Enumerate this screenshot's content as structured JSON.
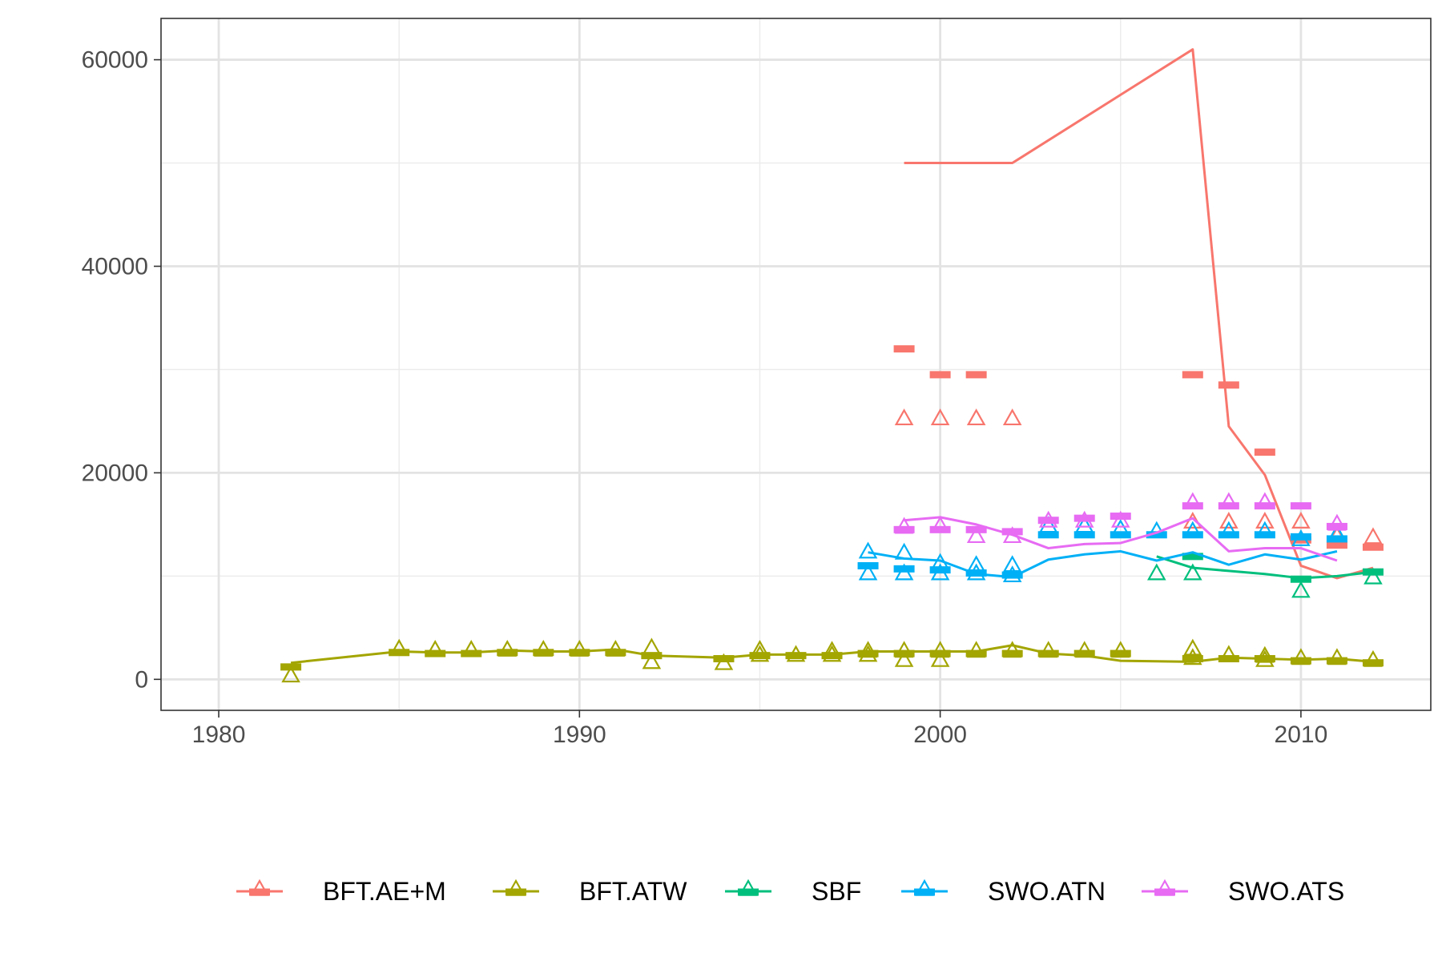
{
  "chart_data": {
    "type": "line",
    "title": "",
    "xlabel": "",
    "ylabel": "",
    "xlim": [
      1978.4,
      2013.6
    ],
    "ylim": [
      -3000,
      64000
    ],
    "x_ticks": [
      1980,
      1990,
      2000,
      2010
    ],
    "y_ticks": [
      0,
      20000,
      40000,
      60000
    ],
    "x_minor": [
      1985,
      1995,
      2005
    ],
    "y_minor": [
      10000,
      30000,
      50000
    ],
    "grid": true,
    "legend_position": "bottom",
    "series": [
      {
        "name": "BFT.AE+M",
        "color": "#F8766D",
        "line": [
          [
            1999,
            50000
          ],
          [
            2000,
            50000
          ],
          [
            2002,
            50000
          ],
          [
            2007,
            61000
          ],
          [
            2008,
            24500
          ],
          [
            2009,
            19800
          ],
          [
            2010,
            11000
          ],
          [
            2011,
            9800
          ],
          [
            2012,
            10800
          ]
        ],
        "triangles": [
          [
            1999,
            25200
          ],
          [
            2000,
            25200
          ],
          [
            2001,
            25200
          ],
          [
            2002,
            25200
          ],
          [
            2007,
            15200
          ],
          [
            2008,
            15200
          ],
          [
            2009,
            15200
          ],
          [
            2010,
            15200
          ],
          [
            2011,
            13800
          ],
          [
            2012,
            13700
          ]
        ],
        "bars": [
          [
            1999,
            32000
          ],
          [
            2000,
            29500
          ],
          [
            2001,
            29500
          ],
          [
            2007,
            29500
          ],
          [
            2008,
            28500
          ],
          [
            2009,
            22000
          ],
          [
            2010,
            13500
          ],
          [
            2011,
            13000
          ],
          [
            2012,
            12800
          ]
        ]
      },
      {
        "name": "BFT.ATW",
        "color": "#A3A500",
        "line": [
          [
            1982,
            1600
          ],
          [
            1985,
            2700
          ],
          [
            1986,
            2600
          ],
          [
            1987,
            2600
          ],
          [
            1988,
            2800
          ],
          [
            1989,
            2700
          ],
          [
            1990,
            2700
          ],
          [
            1991,
            2900
          ],
          [
            1992,
            2300
          ],
          [
            1994,
            2100
          ],
          [
            1995,
            2400
          ],
          [
            1996,
            2400
          ],
          [
            1997,
            2400
          ],
          [
            1998,
            2700
          ],
          [
            1999,
            2700
          ],
          [
            2000,
            2700
          ],
          [
            2001,
            2700
          ],
          [
            2002,
            3300
          ],
          [
            2003,
            2500
          ],
          [
            2004,
            2300
          ],
          [
            2005,
            1800
          ],
          [
            2007,
            1700
          ],
          [
            2008,
            2100
          ],
          [
            2009,
            2000
          ],
          [
            2010,
            1900
          ],
          [
            2011,
            2000
          ],
          [
            2012,
            1700
          ]
        ],
        "triangles": [
          [
            1982,
            300
          ],
          [
            1985,
            2900
          ],
          [
            1986,
            2800
          ],
          [
            1987,
            2800
          ],
          [
            1988,
            2800
          ],
          [
            1989,
            2800
          ],
          [
            1990,
            2800
          ],
          [
            1991,
            2800
          ],
          [
            1992,
            1600
          ],
          [
            1992,
            3000
          ],
          [
            1994,
            1500
          ],
          [
            1995,
            2300
          ],
          [
            1995,
            2800
          ],
          [
            1996,
            2300
          ],
          [
            1997,
            2300
          ],
          [
            1997,
            2700
          ],
          [
            1998,
            2300
          ],
          [
            1998,
            2700
          ],
          [
            1999,
            1800
          ],
          [
            1999,
            2700
          ],
          [
            2000,
            1800
          ],
          [
            2000,
            2700
          ],
          [
            2001,
            2700
          ],
          [
            2002,
            2700
          ],
          [
            2003,
            2700
          ],
          [
            2004,
            2700
          ],
          [
            2005,
            2700
          ],
          [
            2007,
            2000
          ],
          [
            2007,
            2900
          ],
          [
            2008,
            2300
          ],
          [
            2009,
            1800
          ],
          [
            2009,
            2200
          ],
          [
            2010,
            2000
          ],
          [
            2011,
            2000
          ],
          [
            2012,
            1800
          ]
        ],
        "bars": [
          [
            1982,
            1200
          ],
          [
            1985,
            2600
          ],
          [
            1986,
            2500
          ],
          [
            1987,
            2500
          ],
          [
            1988,
            2600
          ],
          [
            1989,
            2600
          ],
          [
            1990,
            2600
          ],
          [
            1991,
            2600
          ],
          [
            1992,
            2300
          ],
          [
            1994,
            2000
          ],
          [
            1995,
            2300
          ],
          [
            1996,
            2300
          ],
          [
            1997,
            2300
          ],
          [
            1998,
            2500
          ],
          [
            1999,
            2500
          ],
          [
            2000,
            2500
          ],
          [
            2001,
            2500
          ],
          [
            2002,
            2500
          ],
          [
            2003,
            2500
          ],
          [
            2004,
            2500
          ],
          [
            2005,
            2500
          ],
          [
            2007,
            2000
          ],
          [
            2008,
            2000
          ],
          [
            2009,
            2000
          ],
          [
            2010,
            1800
          ],
          [
            2011,
            1800
          ],
          [
            2012,
            1600
          ]
        ]
      },
      {
        "name": "SBF",
        "color": "#00BF7D",
        "line": [
          [
            2006,
            11900
          ],
          [
            2007,
            10800
          ],
          [
            2008,
            10500
          ],
          [
            2009,
            10200
          ],
          [
            2010,
            9800
          ],
          [
            2011,
            10000
          ],
          [
            2012,
            10400
          ]
        ],
        "triangles": [
          [
            2006,
            10200
          ],
          [
            2007,
            10200
          ],
          [
            2010,
            8500
          ],
          [
            2012,
            9800
          ]
        ],
        "bars": [
          [
            2007,
            11900
          ],
          [
            2010,
            9700
          ],
          [
            2012,
            10400
          ]
        ]
      },
      {
        "name": "SWO.ATN",
        "color": "#00B0F6",
        "line": [
          [
            1998,
            12300
          ],
          [
            1999,
            11700
          ],
          [
            2000,
            11500
          ],
          [
            2001,
            10200
          ],
          [
            2002,
            9900
          ],
          [
            2003,
            11600
          ],
          [
            2004,
            12100
          ],
          [
            2005,
            12400
          ],
          [
            2006,
            11500
          ],
          [
            2007,
            12300
          ],
          [
            2008,
            11100
          ],
          [
            2009,
            12100
          ],
          [
            2010,
            11600
          ],
          [
            2011,
            12400
          ]
        ],
        "triangles": [
          [
            1998,
            10200
          ],
          [
            1998,
            12300
          ],
          [
            1999,
            10200
          ],
          [
            1999,
            12200
          ],
          [
            2000,
            10200
          ],
          [
            2000,
            11200
          ],
          [
            2001,
            10200
          ],
          [
            2001,
            11000
          ],
          [
            2002,
            10000
          ],
          [
            2002,
            11000
          ],
          [
            2003,
            14800
          ],
          [
            2004,
            14800
          ],
          [
            2005,
            14500
          ],
          [
            2006,
            14300
          ],
          [
            2007,
            14300
          ],
          [
            2008,
            14300
          ],
          [
            2009,
            14300
          ],
          [
            2010,
            13500
          ],
          [
            2011,
            14000
          ]
        ],
        "bars": [
          [
            1998,
            11000
          ],
          [
            1999,
            10700
          ],
          [
            2000,
            10600
          ],
          [
            2001,
            10300
          ],
          [
            2002,
            10100
          ],
          [
            2003,
            14000
          ],
          [
            2004,
            14000
          ],
          [
            2005,
            14000
          ],
          [
            2006,
            14000
          ],
          [
            2007,
            14000
          ],
          [
            2008,
            14000
          ],
          [
            2009,
            14000
          ],
          [
            2010,
            13800
          ],
          [
            2011,
            13600
          ]
        ]
      },
      {
        "name": "SWO.ATS",
        "color": "#E76BF3",
        "line": [
          [
            1999,
            15400
          ],
          [
            2000,
            15700
          ],
          [
            2001,
            15000
          ],
          [
            2002,
            14000
          ],
          [
            2003,
            12700
          ],
          [
            2004,
            13100
          ],
          [
            2005,
            13200
          ],
          [
            2006,
            14200
          ],
          [
            2007,
            15600
          ],
          [
            2008,
            12400
          ],
          [
            2009,
            12700
          ],
          [
            2010,
            12700
          ],
          [
            2011,
            11500
          ]
        ],
        "triangles": [
          [
            1999,
            14700
          ],
          [
            2000,
            14800
          ],
          [
            2001,
            13800
          ],
          [
            2002,
            13800
          ],
          [
            2003,
            15300
          ],
          [
            2004,
            15300
          ],
          [
            2005,
            15300
          ],
          [
            2007,
            17100
          ],
          [
            2008,
            17100
          ],
          [
            2009,
            17100
          ],
          [
            2011,
            15000
          ]
        ],
        "bars": [
          [
            1999,
            14500
          ],
          [
            2000,
            14500
          ],
          [
            2001,
            14500
          ],
          [
            2002,
            14300
          ],
          [
            2003,
            15400
          ],
          [
            2004,
            15600
          ],
          [
            2005,
            15800
          ],
          [
            2007,
            16800
          ],
          [
            2008,
            16800
          ],
          [
            2009,
            16800
          ],
          [
            2010,
            16800
          ],
          [
            2011,
            14800
          ]
        ]
      }
    ]
  }
}
